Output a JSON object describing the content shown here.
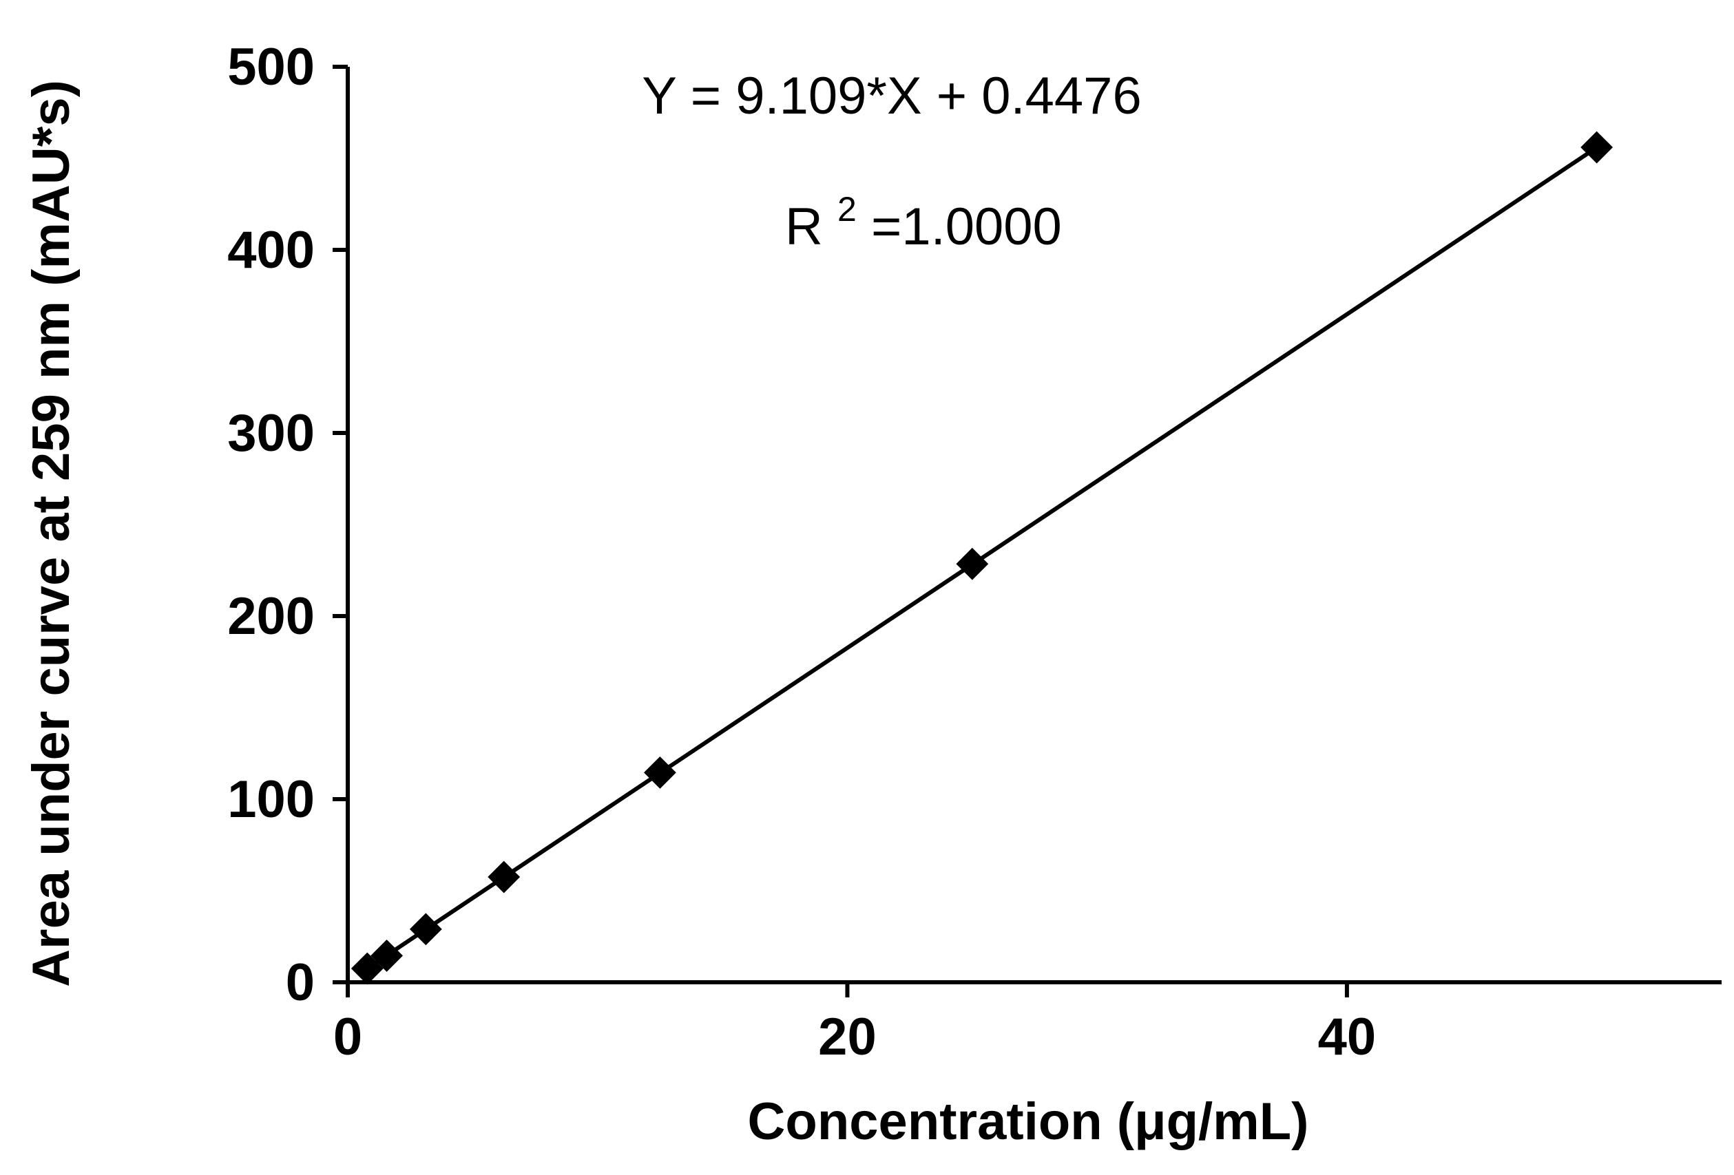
{
  "chart_data": {
    "type": "scatter",
    "xlabel": "Concentration (μg/mL)",
    "ylabel": "Area under curve at 259 nm (mAU*s)",
    "xlim": [
      0,
      55
    ],
    "ylim": [
      0,
      500
    ],
    "x_ticks": [
      0,
      20,
      40
    ],
    "y_ticks": [
      0,
      100,
      200,
      300,
      400,
      500
    ],
    "grid": false,
    "marker": "diamond",
    "series": [
      {
        "x": [
          0.78,
          1.56,
          3.125,
          6.25,
          12.5,
          25,
          50
        ],
        "y": [
          7.5,
          14.5,
          29,
          57.5,
          114.5,
          228.5,
          456
        ]
      }
    ],
    "fit": {
      "slope": 9.109,
      "intercept": 0.4476,
      "x_range": [
        0.78,
        50
      ]
    },
    "annotations": {
      "equation": "Y = 9.109*X + 0.4476",
      "r2_prefix": "R",
      "r2_sup": "2",
      "r2_value": "=1.0000"
    }
  }
}
